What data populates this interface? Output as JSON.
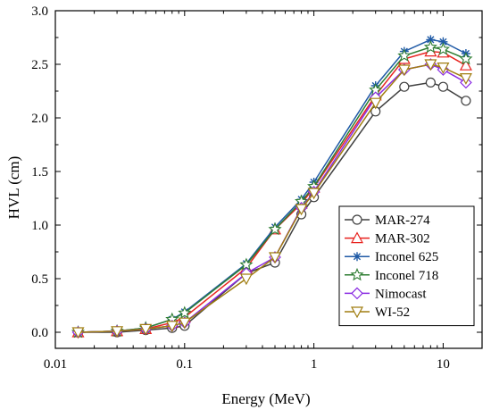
{
  "chart_data": {
    "type": "line",
    "xlabel": "Energy (MeV)",
    "ylabel": "HVL (cm)",
    "xscale": "log",
    "xlim": [
      0.01,
      20
    ],
    "ylim": [
      -0.15,
      3.0
    ],
    "xticks": [
      {
        "value": 0.01,
        "label": "0.01"
      },
      {
        "value": 0.1,
        "label": "0.1"
      },
      {
        "value": 1,
        "label": "1"
      },
      {
        "value": 10,
        "label": "10"
      }
    ],
    "yticks": [
      {
        "value": 0.0,
        "label": "0.0"
      },
      {
        "value": 0.5,
        "label": "0.5"
      },
      {
        "value": 1.0,
        "label": "1.0"
      },
      {
        "value": 1.5,
        "label": "1.5"
      },
      {
        "value": 2.0,
        "label": "2.0"
      },
      {
        "value": 2.5,
        "label": "2.5"
      },
      {
        "value": 3.0,
        "label": "3.0"
      }
    ],
    "grid": false,
    "legend_position": "lower-right",
    "x": [
      0.015,
      0.03,
      0.05,
      0.08,
      0.1,
      0.3,
      0.5,
      0.8,
      1,
      3,
      5,
      8,
      10,
      15
    ],
    "series": [
      {
        "name": "MAR-274",
        "color": "#404040",
        "marker": "circle",
        "values": [
          0.0,
          0.0,
          0.02,
          0.04,
          0.06,
          0.55,
          0.65,
          1.1,
          1.26,
          2.06,
          2.29,
          2.33,
          2.29,
          2.16
        ]
      },
      {
        "name": "MAR-302",
        "color": "#e8231f",
        "marker": "triangle-up",
        "values": [
          0.0,
          0.01,
          0.03,
          0.09,
          0.14,
          0.6,
          0.96,
          1.2,
          1.35,
          2.21,
          2.55,
          2.62,
          2.61,
          2.49
        ]
      },
      {
        "name": "Inconel 625",
        "color": "#1f5aa6",
        "marker": "asterisk",
        "values": [
          0.0,
          0.01,
          0.04,
          0.12,
          0.19,
          0.64,
          0.98,
          1.24,
          1.4,
          2.3,
          2.62,
          2.73,
          2.71,
          2.6
        ]
      },
      {
        "name": "Inconel 718",
        "color": "#2e7d32",
        "marker": "star",
        "values": [
          0.0,
          0.01,
          0.04,
          0.12,
          0.18,
          0.63,
          0.96,
          1.22,
          1.36,
          2.26,
          2.58,
          2.66,
          2.64,
          2.55
        ]
      },
      {
        "name": "Nimocast",
        "color": "#8a2be2",
        "marker": "diamond",
        "values": [
          0.0,
          0.01,
          0.03,
          0.06,
          0.09,
          0.55,
          0.7,
          1.16,
          1.31,
          2.19,
          2.45,
          2.5,
          2.45,
          2.33
        ]
      },
      {
        "name": "WI-52",
        "color": "#a07d10",
        "marker": "triangle-down",
        "values": [
          0.0,
          0.01,
          0.03,
          0.06,
          0.09,
          0.5,
          0.7,
          1.15,
          1.3,
          2.14,
          2.45,
          2.5,
          2.47,
          2.37
        ]
      }
    ]
  }
}
